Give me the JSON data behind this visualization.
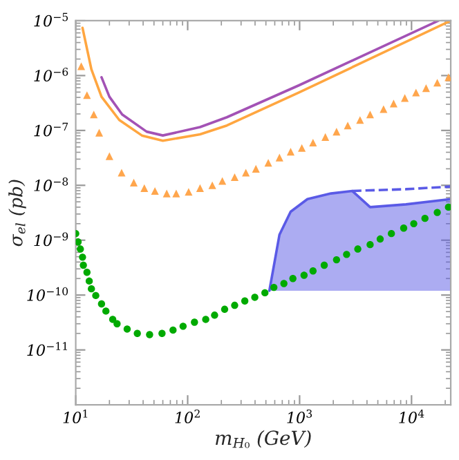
{
  "chart_data": {
    "type": "line",
    "xlabel": "m$_{H₀}$ (GeV)",
    "ylabel": "σ$_{el}$ (pb)",
    "log": "xy",
    "xlim": [
      10,
      22400
    ],
    "ylim": [
      1e-12,
      1e-05
    ],
    "xticks": [
      {
        "value": 10,
        "label": "10$^{1}$"
      },
      {
        "value": 100,
        "label": "10$^{2}$"
      },
      {
        "value": 1000,
        "label": "10$^{3}$"
      },
      {
        "value": 10000,
        "label": "10$^{4}$"
      }
    ],
    "yticks": [
      {
        "value": 1e-11,
        "label": "10$^{−11}$"
      },
      {
        "value": 1e-10,
        "label": "10$^{−10}$"
      },
      {
        "value": 1e-09,
        "label": "10$^{−9}$"
      },
      {
        "value": 1e-08,
        "label": "10$^{−8}$"
      },
      {
        "value": 1e-07,
        "label": "10$^{−7}$"
      },
      {
        "value": 1e-06,
        "label": "10$^{−6}$"
      },
      {
        "value": 1e-05,
        "label": "10$^{−5}$"
      }
    ],
    "grid": false,
    "legend": false,
    "series": [
      {
        "color": "#5a5ae6",
        "x": [
          537,
          661,
          832,
          1175,
          1905,
          2951,
          4266,
          8913,
          22400
        ],
        "values": [
          1.2e-10,
          1.26e-09,
          3.3e-09,
          5.6e-09,
          7.1e-09,
          7.9e-09,
          4e-09,
          4.5e-09,
          5.6e-09
        ],
        "lower": [
          1.2e-10,
          1.2e-10,
          1.2e-10,
          1.2e-10,
          1.2e-10,
          1.2e-10,
          1.2e-10,
          1.2e-10,
          1.2e-10
        ],
        "upper": [
          1.2e-10,
          1.26e-09,
          3.3e-09,
          5.6e-09,
          7.1e-09,
          7.9e-09,
          4e-09,
          4.5e-09,
          5.6e-09
        ]
      },
      {
        "color": "#5a5ae6",
        "line_style": "dashed",
        "x": [
          2951,
          8913,
          22400
        ],
        "values": [
          7.9e-09,
          8.5e-09,
          9.5e-09
        ]
      },
      {
        "color": "#a352b5",
        "line_style": "solid",
        "x": [
          17,
          20,
          26,
          43,
          60,
          129,
          224,
          980,
          17400
        ],
        "values": [
          9.3e-07,
          4.1e-07,
          1.95e-07,
          9.5e-08,
          8.1e-08,
          1.15e-07,
          1.74e-07,
          6.6e-07,
          1e-05
        ]
      },
      {
        "color": "#ffa640",
        "line_style": "solid",
        "x": [
          11.5,
          13.8,
          17,
          24.5,
          39,
          60,
          129,
          224,
          980,
          22400
        ],
        "values": [
          7.4e-06,
          1.3e-06,
          4.1e-07,
          1.55e-07,
          8.1e-08,
          6.5e-08,
          8.5e-08,
          1.23e-07,
          4.9e-07,
          1e-05
        ]
      },
      {
        "type": "scatter",
        "color": "#ffa64d",
        "marker": "triangle",
        "x": [
          11.2,
          12.6,
          14.5,
          16.2,
          20,
          25.7,
          33,
          41,
          51,
          65,
          79,
          102,
          129,
          166,
          204,
          263,
          331,
          407,
          525,
          661,
          832,
          1047,
          1318,
          1698,
          2138,
          2692,
          3467,
          4266,
          5623,
          6918,
          8710,
          10960,
          13490,
          16980,
          21380
        ],
        "values": [
          1.48e-06,
          4.4e-07,
          1.95e-07,
          9.1e-08,
          3.4e-08,
          1.7e-08,
          1.12e-08,
          8.9e-09,
          7.9e-09,
          7.1e-09,
          7.1e-09,
          7.6e-09,
          8.9e-09,
          1e-08,
          1.2e-08,
          1.41e-08,
          1.7e-08,
          2e-08,
          2.57e-08,
          3.2e-08,
          4.1e-08,
          4.8e-08,
          6e-08,
          7.6e-08,
          9.5e-08,
          1.23e-07,
          1.55e-07,
          1.95e-07,
          2.45e-07,
          3.1e-07,
          3.9e-07,
          4.9e-07,
          5.9e-07,
          7.4e-07,
          9.3e-07
        ]
      },
      {
        "type": "scatter",
        "color": "#00aa00",
        "marker": "circle",
        "x": [
          10,
          10.5,
          11,
          11.5,
          11.7,
          12.6,
          13.2,
          13.8,
          15.1,
          17,
          18.6,
          21.4,
          23.4,
          28.8,
          35.5,
          45.7,
          59,
          74,
          91,
          115,
          145,
          174,
          214,
          263,
          324,
          398,
          490,
          589,
          724,
          871,
          1096,
          1318,
          1660,
          2138,
          2630,
          3311,
          4266,
          5248,
          6607,
          8511,
          10470,
          13180,
          16980,
          21380
        ],
        "values": [
          1.32e-09,
          9.3e-10,
          6.9e-10,
          4.9e-10,
          3.5e-10,
          2.6e-10,
          1.8e-10,
          1.3e-10,
          9.8e-11,
          6.9e-11,
          5.1e-11,
          3.6e-11,
          3e-11,
          2.4e-11,
          2e-11,
          1.9e-11,
          2e-11,
          2.3e-11,
          2.7e-11,
          3.2e-11,
          3.6e-11,
          4.3e-11,
          5.5e-11,
          6.5e-11,
          7.8e-11,
          9.1e-11,
          1.1e-10,
          1.38e-10,
          1.62e-10,
          2e-10,
          2.3e-10,
          2.75e-10,
          3.5e-10,
          4.4e-10,
          5.5e-10,
          6.9e-10,
          8.3e-10,
          1.05e-09,
          1.32e-09,
          1.66e-09,
          2e-09,
          2.5e-09,
          3.2e-09,
          4e-09
        ]
      }
    ]
  }
}
